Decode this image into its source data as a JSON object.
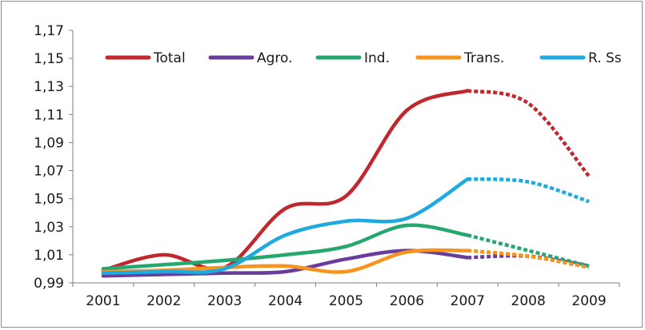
{
  "chart_data": {
    "type": "line",
    "title": "",
    "xlabel": "",
    "ylabel": "",
    "categories": [
      "2001",
      "2002",
      "2003",
      "2004",
      "2005",
      "2006",
      "2007",
      "2008",
      "2009"
    ],
    "ylim": [
      0.99,
      1.17
    ],
    "y_ticks": [
      "0,99",
      "1,01",
      "1,03",
      "1,05",
      "1,07",
      "1,09",
      "1,11",
      "1,13",
      "1,15",
      "1,17"
    ],
    "legend_position": "top",
    "grid": false,
    "projected_from_index": 6,
    "series": [
      {
        "name": "Total",
        "color": "#c0282d",
        "values": [
          0.999,
          1.01,
          1.001,
          1.043,
          1.052,
          1.113,
          1.127,
          1.118,
          1.066
        ]
      },
      {
        "name": "Agro.",
        "color": "#6a3d9a",
        "values": [
          0.995,
          0.996,
          0.997,
          0.998,
          1.007,
          1.013,
          1.008,
          1.009,
          1.002
        ]
      },
      {
        "name": "Ind.",
        "color": "#27a770",
        "values": [
          1.0,
          1.003,
          1.006,
          1.01,
          1.016,
          1.031,
          1.024,
          1.013,
          1.002
        ]
      },
      {
        "name": "Trans.",
        "color": "#f7941d",
        "values": [
          0.998,
          0.999,
          1.001,
          1.002,
          0.998,
          1.012,
          1.013,
          1.009,
          1.001
        ]
      },
      {
        "name": "R. Ss",
        "color": "#1ea9e1",
        "values": [
          0.997,
          0.998,
          1.0,
          1.024,
          1.034,
          1.036,
          1.064,
          1.062,
          1.048
        ]
      }
    ]
  }
}
